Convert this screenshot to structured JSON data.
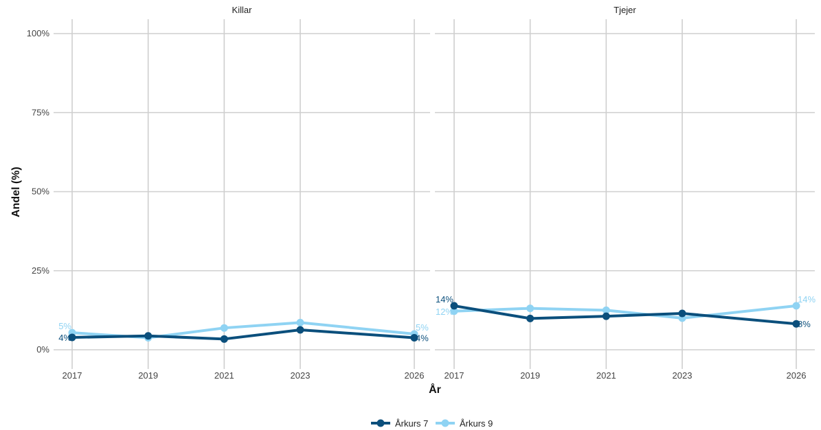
{
  "chart_data": {
    "type": "line",
    "xlabel": "År",
    "ylabel": "Andel (%)",
    "ylim": [
      0,
      100
    ],
    "y_ticks": [
      0,
      25,
      50,
      75,
      100
    ],
    "y_tick_labels": [
      "0%",
      "25%",
      "50%",
      "75%",
      "100%"
    ],
    "x_ticks": [
      2017,
      2019,
      2021,
      2023,
      2026
    ],
    "legend_position": "bottom",
    "grid": true,
    "colors": {
      "Årkurs 7": "#0b4f7c",
      "Årkurs 9": "#8fd3f3"
    },
    "panels": [
      {
        "title": "Killar",
        "series": [
          {
            "name": "Årkurs 7",
            "x": [
              2017,
              2019,
              2021,
              2023,
              2026
            ],
            "values": [
              3.9,
              4.4,
              3.4,
              6.3,
              3.8
            ],
            "labels": [
              "4%",
              "",
              "",
              "",
              "4%"
            ]
          },
          {
            "name": "Årkurs 9",
            "x": [
              2017,
              2019,
              2021,
              2023,
              2026
            ],
            "values": [
              5.4,
              3.8,
              6.9,
              8.6,
              5.0
            ],
            "labels": [
              "5%",
              "",
              "",
              "",
              "5%"
            ]
          }
        ]
      },
      {
        "title": "Tjejer",
        "series": [
          {
            "name": "Årkurs 7",
            "x": [
              2017,
              2019,
              2021,
              2023,
              2026
            ],
            "values": [
              13.9,
              9.9,
              10.6,
              11.5,
              8.2
            ],
            "labels": [
              "14%",
              "",
              "",
              "",
              "8%"
            ]
          },
          {
            "name": "Årkurs 9",
            "x": [
              2017,
              2019,
              2021,
              2023,
              2026
            ],
            "values": [
              12.2,
              13.1,
              12.5,
              10.0,
              13.9
            ],
            "labels": [
              "12%",
              "",
              "",
              "",
              "14%"
            ]
          }
        ]
      }
    ]
  }
}
